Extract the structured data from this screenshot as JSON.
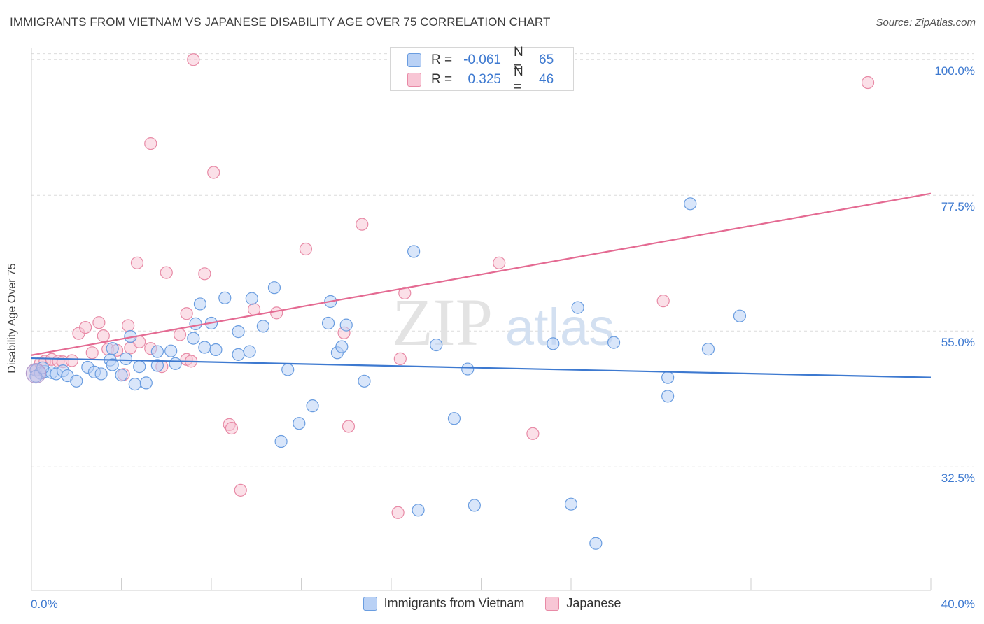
{
  "header": {
    "title": "IMMIGRANTS FROM VIETNAM VS JAPANESE DISABILITY AGE OVER 75 CORRELATION CHART",
    "source": "Source: ZipAtlas.com"
  },
  "watermark": {
    "zip": "ZIP",
    "atlas": "atlas"
  },
  "legend_top": {
    "rows": [
      {
        "r_label": "R =",
        "r_value": "-0.061",
        "n_label": "N =",
        "n_value": "65",
        "color": "#6a9de0",
        "fill": "#b9d1f5"
      },
      {
        "r_label": "R =",
        "r_value": "0.325",
        "n_label": "N =",
        "n_value": "46",
        "color": "#e88aa6",
        "fill": "#f8c6d5"
      }
    ]
  },
  "legend_bottom": [
    {
      "label": "Immigrants from Vietnam",
      "fill": "#b9d1f5",
      "stroke": "#6a9de0"
    },
    {
      "label": "Japanese",
      "fill": "#f8c6d5",
      "stroke": "#e88aa6"
    }
  ],
  "chart_data": {
    "type": "scatter",
    "title": "IMMIGRANTS FROM VIETNAM VS JAPANESE DISABILITY AGE OVER 75 CORRELATION CHART",
    "xlabel": "",
    "ylabel": "Disability Age Over 75",
    "xlim": [
      0,
      40
    ],
    "ylim": [
      12,
      102
    ],
    "x_tick_labels": [
      "0.0%",
      "40.0%"
    ],
    "y_ticks": [
      32.5,
      55.0,
      77.5,
      100.0
    ],
    "y_tick_labels": [
      "32.5%",
      "55.0%",
      "77.5%",
      "100.0%"
    ],
    "grid": true,
    "legend": "bottom",
    "series": [
      {
        "name": "Immigrants from Vietnam",
        "color": "#3d79d0",
        "marker_fill": "#b9d1f5",
        "marker_stroke": "#6a9de0",
        "trend": {
          "x": [
            0,
            40
          ],
          "y": [
            50.5,
            47.3
          ]
        },
        "points": [
          [
            0.2,
            48.5
          ],
          [
            0.4,
            48.0
          ],
          [
            0.6,
            48.3
          ],
          [
            0.9,
            48.1
          ],
          [
            1.1,
            47.9
          ],
          [
            1.4,
            48.4
          ],
          [
            1.6,
            47.6
          ],
          [
            2.0,
            46.7
          ],
          [
            2.5,
            49.0
          ],
          [
            2.8,
            48.2
          ],
          [
            3.1,
            47.9
          ],
          [
            3.5,
            50.2
          ],
          [
            3.6,
            52.1
          ],
          [
            3.6,
            49.4
          ],
          [
            4.0,
            47.7
          ],
          [
            4.2,
            50.4
          ],
          [
            4.4,
            54.1
          ],
          [
            4.6,
            46.2
          ],
          [
            4.8,
            49.1
          ],
          [
            5.1,
            46.4
          ],
          [
            5.6,
            51.6
          ],
          [
            5.6,
            49.3
          ],
          [
            6.2,
            51.7
          ],
          [
            6.4,
            49.6
          ],
          [
            7.2,
            53.8
          ],
          [
            7.3,
            56.2
          ],
          [
            7.5,
            59.5
          ],
          [
            7.7,
            52.3
          ],
          [
            8.0,
            56.3
          ],
          [
            8.2,
            51.9
          ],
          [
            8.6,
            60.5
          ],
          [
            9.2,
            51.1
          ],
          [
            9.2,
            54.9
          ],
          [
            9.7,
            51.6
          ],
          [
            9.8,
            60.4
          ],
          [
            10.3,
            55.8
          ],
          [
            10.8,
            62.2
          ],
          [
            11.1,
            36.7
          ],
          [
            11.4,
            48.6
          ],
          [
            11.9,
            39.7
          ],
          [
            12.5,
            42.6
          ],
          [
            13.3,
            59.9
          ],
          [
            13.2,
            56.3
          ],
          [
            13.6,
            51.4
          ],
          [
            13.8,
            52.4
          ],
          [
            14.0,
            56.0
          ],
          [
            14.8,
            46.7
          ],
          [
            17.0,
            68.2
          ],
          [
            17.2,
            25.3
          ],
          [
            18.0,
            52.7
          ],
          [
            18.8,
            40.5
          ],
          [
            19.4,
            48.7
          ],
          [
            19.7,
            26.1
          ],
          [
            23.2,
            52.9
          ],
          [
            24.0,
            26.3
          ],
          [
            24.3,
            58.9
          ],
          [
            25.1,
            19.8
          ],
          [
            25.9,
            53.1
          ],
          [
            28.3,
            47.3
          ],
          [
            28.3,
            44.2
          ],
          [
            29.3,
            76.1
          ],
          [
            30.1,
            52.0
          ],
          [
            31.5,
            57.5
          ],
          [
            0.2,
            47.5
          ],
          [
            0.5,
            48.9
          ]
        ]
      },
      {
        "name": "Japanese",
        "color": "#e46a92",
        "marker_fill": "#f8c6d5",
        "marker_stroke": "#e88aa6",
        "trend": {
          "x": [
            0,
            40
          ],
          "y": [
            51.0,
            77.8
          ]
        },
        "points": [
          [
            0.2,
            48.6
          ],
          [
            0.4,
            49.7
          ],
          [
            0.6,
            50.0
          ],
          [
            0.9,
            50.3
          ],
          [
            1.2,
            50.0
          ],
          [
            1.4,
            49.9
          ],
          [
            1.8,
            50.1
          ],
          [
            2.1,
            54.6
          ],
          [
            2.4,
            55.6
          ],
          [
            2.7,
            51.4
          ],
          [
            3.0,
            56.4
          ],
          [
            3.2,
            54.2
          ],
          [
            3.4,
            52.0
          ],
          [
            3.8,
            51.8
          ],
          [
            4.1,
            47.8
          ],
          [
            4.3,
            55.9
          ],
          [
            4.4,
            52.2
          ],
          [
            4.8,
            53.2
          ],
          [
            4.7,
            66.3
          ],
          [
            5.3,
            86.1
          ],
          [
            5.3,
            52.1
          ],
          [
            5.8,
            49.1
          ],
          [
            6.0,
            64.7
          ],
          [
            6.6,
            54.4
          ],
          [
            6.9,
            57.9
          ],
          [
            6.9,
            50.3
          ],
          [
            7.1,
            50.0
          ],
          [
            7.2,
            100.0
          ],
          [
            7.7,
            64.5
          ],
          [
            8.1,
            81.3
          ],
          [
            8.8,
            39.5
          ],
          [
            8.9,
            38.9
          ],
          [
            9.3,
            28.6
          ],
          [
            9.9,
            58.6
          ],
          [
            10.9,
            58.0
          ],
          [
            12.2,
            68.6
          ],
          [
            13.9,
            54.7
          ],
          [
            14.1,
            39.2
          ],
          [
            14.7,
            72.7
          ],
          [
            16.3,
            24.9
          ],
          [
            16.4,
            50.4
          ],
          [
            16.6,
            61.3
          ],
          [
            20.8,
            66.3
          ],
          [
            22.3,
            38.0
          ],
          [
            28.1,
            60.0
          ],
          [
            37.2,
            96.2
          ]
        ]
      }
    ]
  }
}
